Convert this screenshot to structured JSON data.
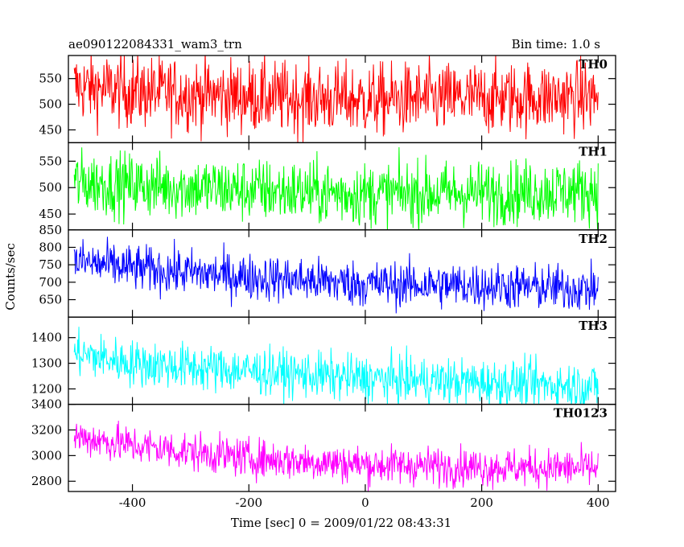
{
  "header": {
    "title": "ae090122084331_wam3_trn",
    "bin_time": "Bin time: 1.0 s"
  },
  "chart_data": {
    "type": "line",
    "title": "ae090122084331_wam3_trn",
    "subtitle": "Bin time: 1.0 s",
    "xlabel": "Time [sec] 0 = 2009/01/22 08:43:31",
    "ylabel": "Counts/sec",
    "xlim": [
      -510,
      430
    ],
    "xticks": [
      -400,
      -200,
      0,
      200,
      400
    ],
    "grid": false,
    "bin_time_sec": 1.0,
    "x_range": [
      -500,
      400
    ],
    "panels": [
      {
        "name": "TH0",
        "color": "#ff0000",
        "ylim": [
          425,
          595
        ],
        "yticks": [
          450,
          500,
          550
        ],
        "trend": [
          [
            -500,
            535
          ],
          [
            -400,
            525
          ],
          [
            -200,
            515
          ],
          [
            0,
            508
          ],
          [
            200,
            512
          ],
          [
            400,
            515
          ]
        ],
        "noise": 35
      },
      {
        "name": "TH1",
        "color": "#00ff00",
        "ylim": [
          420,
          585
        ],
        "yticks": [
          450,
          500,
          550
        ],
        "trend": [
          [
            -500,
            510
          ],
          [
            -400,
            505
          ],
          [
            -200,
            495
          ],
          [
            0,
            488
          ],
          [
            200,
            490
          ],
          [
            400,
            495
          ]
        ],
        "noise": 30
      },
      {
        "name": "TH2",
        "color": "#0000ff",
        "ylim": [
          600,
          850
        ],
        "yticks": [
          650,
          700,
          750,
          800,
          850
        ],
        "trend": [
          [
            -500,
            760
          ],
          [
            -400,
            740
          ],
          [
            -200,
            715
          ],
          [
            0,
            695
          ],
          [
            200,
            690
          ],
          [
            400,
            680
          ]
        ],
        "noise": 33
      },
      {
        "name": "TH3",
        "color": "#00ffff",
        "ylim": [
          1140,
          1480
        ],
        "yticks": [
          1200,
          1300,
          1400
        ],
        "trend": [
          [
            -500,
            1340
          ],
          [
            -400,
            1300
          ],
          [
            -200,
            1270
          ],
          [
            0,
            1240
          ],
          [
            200,
            1225
          ],
          [
            400,
            1210
          ]
        ],
        "noise": 45
      },
      {
        "name": "TH0123",
        "color": "#ff00ff",
        "ylim": [
          2720,
          3400
        ],
        "yticks": [
          2800,
          3000,
          3200,
          3400
        ],
        "trend": [
          [
            -500,
            3150
          ],
          [
            -400,
            3080
          ],
          [
            -200,
            2980
          ],
          [
            0,
            2930
          ],
          [
            200,
            2910
          ],
          [
            400,
            2900
          ]
        ],
        "noise": 75
      }
    ]
  }
}
